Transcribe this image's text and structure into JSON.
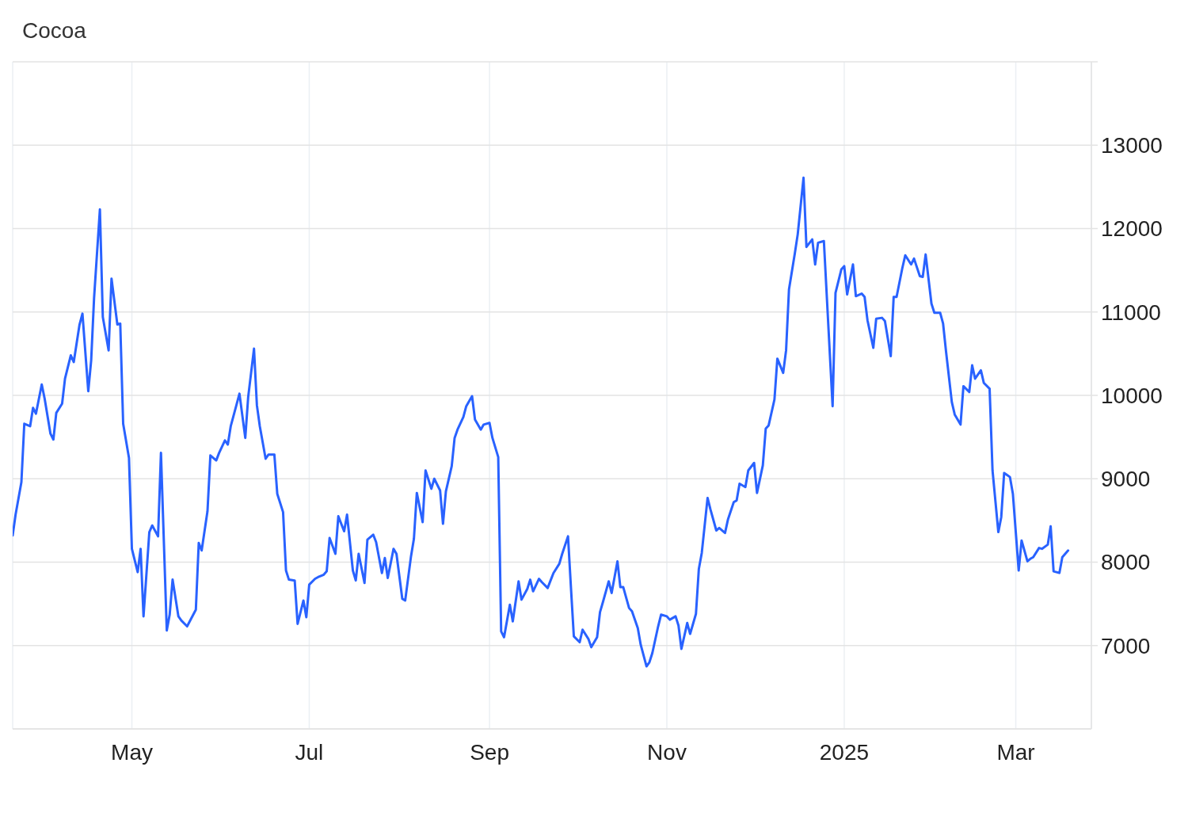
{
  "chart_data": {
    "type": "line",
    "title": "Cocoa",
    "color": "#2962ff",
    "grid": true,
    "xlim": [
      "2024-03-21",
      "2025-03-27"
    ],
    "xticks": [
      {
        "value": "2024-05-01",
        "label": "May"
      },
      {
        "value": "2024-07-01",
        "label": "Jul"
      },
      {
        "value": "2024-09-01",
        "label": "Sep"
      },
      {
        "value": "2024-11-01",
        "label": "Nov"
      },
      {
        "value": "2025-01-01",
        "label": "2025"
      },
      {
        "value": "2025-03-01",
        "label": "Mar"
      }
    ],
    "ylim": [
      6000,
      14000
    ],
    "yticks": [
      7000,
      8000,
      9000,
      10000,
      11000,
      12000,
      13000,
      {
        "value": 14000,
        "label": null
      }
    ],
    "x": [
      "2024-03-21",
      "2024-03-22",
      "2024-03-24",
      "2024-03-25",
      "2024-03-27",
      "2024-03-28",
      "2024-03-29",
      "2024-03-31",
      "2024-04-01",
      "2024-04-03",
      "2024-04-04",
      "2024-04-05",
      "2024-04-07",
      "2024-04-08",
      "2024-04-10",
      "2024-04-11",
      "2024-04-13",
      "2024-04-14",
      "2024-04-16",
      "2024-04-17",
      "2024-04-18",
      "2024-04-20",
      "2024-04-21",
      "2024-04-23",
      "2024-04-24",
      "2024-04-26",
      "2024-04-27",
      "2024-04-28",
      "2024-04-30",
      "2024-05-01",
      "2024-05-03",
      "2024-05-04",
      "2024-05-05",
      "2024-05-07",
      "2024-05-08",
      "2024-05-10",
      "2024-05-11",
      "2024-05-13",
      "2024-05-14",
      "2024-05-15",
      "2024-05-17",
      "2024-05-18",
      "2024-05-20",
      "2024-05-23",
      "2024-05-24",
      "2024-05-25",
      "2024-05-27",
      "2024-05-28",
      "2024-05-30",
      "2024-05-31",
      "2024-06-02",
      "2024-06-03",
      "2024-06-04",
      "2024-06-06",
      "2024-06-07",
      "2024-06-09",
      "2024-06-10",
      "2024-06-12",
      "2024-06-13",
      "2024-06-14",
      "2024-06-16",
      "2024-06-17",
      "2024-06-19",
      "2024-06-20",
      "2024-06-22",
      "2024-06-23",
      "2024-06-24",
      "2024-06-26",
      "2024-06-27",
      "2024-06-29",
      "2024-06-30",
      "2024-07-01",
      "2024-07-03",
      "2024-07-04",
      "2024-07-06",
      "2024-07-07",
      "2024-07-08",
      "2024-07-10",
      "2024-07-11",
      "2024-07-13",
      "2024-07-14",
      "2024-07-16",
      "2024-07-17",
      "2024-07-18",
      "2024-07-20",
      "2024-07-21",
      "2024-07-23",
      "2024-07-24",
      "2024-07-26",
      "2024-07-27",
      "2024-07-28",
      "2024-07-30",
      "2024-07-31",
      "2024-08-02",
      "2024-08-03",
      "2024-08-05",
      "2024-08-06",
      "2024-08-07",
      "2024-08-09",
      "2024-08-10",
      "2024-08-12",
      "2024-08-13",
      "2024-08-15",
      "2024-08-16",
      "2024-08-17",
      "2024-08-19",
      "2024-08-20",
      "2024-08-21",
      "2024-08-23",
      "2024-08-24",
      "2024-08-26",
      "2024-08-27",
      "2024-08-29",
      "2024-08-30",
      "2024-09-01",
      "2024-09-02",
      "2024-09-04",
      "2024-09-05",
      "2024-09-06",
      "2024-09-08",
      "2024-09-09",
      "2024-09-11",
      "2024-09-12",
      "2024-09-14",
      "2024-09-15",
      "2024-09-16",
      "2024-09-18",
      "2024-09-19",
      "2024-09-21",
      "2024-09-22",
      "2024-09-23",
      "2024-09-25",
      "2024-09-26",
      "2024-09-28",
      "2024-09-29",
      "2024-09-30",
      "2024-10-02",
      "2024-10-03",
      "2024-10-05",
      "2024-10-06",
      "2024-10-08",
      "2024-10-09",
      "2024-10-10",
      "2024-10-12",
      "2024-10-13",
      "2024-10-15",
      "2024-10-16",
      "2024-10-17",
      "2024-10-19",
      "2024-10-20",
      "2024-10-22",
      "2024-10-23",
      "2024-10-25",
      "2024-10-26",
      "2024-10-27",
      "2024-10-29",
      "2024-10-30",
      "2024-11-01",
      "2024-11-02",
      "2024-11-04",
      "2024-11-05",
      "2024-11-06",
      "2024-11-08",
      "2024-11-09",
      "2024-11-11",
      "2024-11-12",
      "2024-11-13",
      "2024-11-15",
      "2024-11-16",
      "2024-11-18",
      "2024-11-19",
      "2024-11-21",
      "2024-11-22",
      "2024-11-24",
      "2024-11-25",
      "2024-11-26",
      "2024-11-28",
      "2024-11-29",
      "2024-12-01",
      "2024-12-02",
      "2024-12-04",
      "2024-12-05",
      "2024-12-06",
      "2024-12-08",
      "2024-12-09",
      "2024-12-11",
      "2024-12-12",
      "2024-12-13",
      "2024-12-15",
      "2024-12-16",
      "2024-12-18",
      "2024-12-19",
      "2024-12-21",
      "2024-12-22",
      "2024-12-23",
      "2024-12-25",
      "2024-12-28",
      "2024-12-29",
      "2024-12-31",
      "2025-01-01",
      "2025-01-02",
      "2025-01-04",
      "2025-01-05",
      "2025-01-07",
      "2025-01-08",
      "2025-01-09",
      "2025-01-11",
      "2025-01-12",
      "2025-01-14",
      "2025-01-15",
      "2025-01-17",
      "2025-01-18",
      "2025-01-19",
      "2025-01-21",
      "2025-01-22",
      "2025-01-24",
      "2025-01-25",
      "2025-01-27",
      "2025-01-28",
      "2025-01-29",
      "2025-01-31",
      "2025-02-01",
      "2025-02-03",
      "2025-02-04",
      "2025-02-05",
      "2025-02-07",
      "2025-02-08",
      "2025-02-10",
      "2025-02-11",
      "2025-02-13",
      "2025-02-14",
      "2025-02-15",
      "2025-02-17",
      "2025-02-18",
      "2025-02-20",
      "2025-02-21",
      "2025-02-23",
      "2025-02-24",
      "2025-02-25",
      "2025-02-27",
      "2025-02-28",
      "2025-03-02",
      "2025-03-03",
      "2025-03-05",
      "2025-03-06",
      "2025-03-07",
      "2025-03-09",
      "2025-03-10",
      "2025-03-12",
      "2025-03-13",
      "2025-03-14",
      "2025-03-16",
      "2025-03-17",
      "2025-03-19"
    ],
    "values": [
      8320,
      8570,
      8960,
      9660,
      9630,
      9850,
      9780,
      10130,
      9960,
      9540,
      9470,
      9790,
      9900,
      10200,
      10480,
      10400,
      10850,
      10980,
      10050,
      10420,
      11170,
      12230,
      10940,
      10540,
      11400,
      10850,
      10860,
      9660,
      9250,
      8160,
      7880,
      8160,
      7350,
      8360,
      8440,
      8310,
      9310,
      7180,
      7370,
      7790,
      7350,
      7300,
      7230,
      7430,
      8230,
      8140,
      8610,
      9280,
      9220,
      9310,
      9460,
      9410,
      9630,
      9890,
      10020,
      9490,
      9980,
      10560,
      9880,
      9630,
      9240,
      9290,
      9290,
      8820,
      8600,
      7900,
      7790,
      7780,
      7260,
      7540,
      7340,
      7730,
      7800,
      7820,
      7850,
      7890,
      8290,
      8100,
      8550,
      8370,
      8570,
      7900,
      7780,
      8100,
      7750,
      8270,
      8330,
      8240,
      7870,
      8050,
      7810,
      8160,
      8100,
      7560,
      7540,
      8070,
      8280,
      8830,
      8480,
      9100,
      8880,
      9000,
      8860,
      8460,
      8850,
      9150,
      9490,
      9590,
      9740,
      9870,
      9990,
      9710,
      9590,
      9650,
      9670,
      9490,
      9260,
      7170,
      7100,
      7490,
      7290,
      7770,
      7550,
      7680,
      7790,
      7650,
      7800,
      7760,
      7690,
      7780,
      7870,
      7980,
      8100,
      8310,
      7700,
      7110,
      7040,
      7190,
      7080,
      6980,
      7100,
      7400,
      7520,
      7770,
      7630,
      8010,
      7700,
      7700,
      7450,
      7410,
      7210,
      7010,
      6750,
      6800,
      6910,
      7230,
      7370,
      7350,
      7310,
      7350,
      7240,
      6960,
      7270,
      7140,
      7380,
      7920,
      8110,
      8770,
      8630,
      8380,
      8410,
      8350,
      8510,
      8720,
      8740,
      8940,
      8900,
      9100,
      9190,
      8830,
      9160,
      9600,
      9640,
      9950,
      10440,
      10270,
      10540,
      11270,
      11700,
      11930,
      12610,
      11780,
      11870,
      11570,
      11830,
      11850,
      9870,
      11230,
      11510,
      11550,
      11210,
      11570,
      11190,
      11220,
      11180,
      10900,
      10570,
      10920,
      10930,
      10890,
      10470,
      11180,
      11180,
      11530,
      11680,
      11570,
      11640,
      11430,
      11420,
      11690,
      11100,
      10990,
      10990,
      10860,
      10530,
      9920,
      9770,
      9650,
      10110,
      10040,
      10360,
      10200,
      10300,
      10150,
      10080,
      9100,
      8360,
      8540,
      9070,
      9020,
      8820,
      7900,
      8260,
      8010,
      8040,
      8060,
      8170,
      8160,
      8210,
      8430,
      7890,
      7870,
      8060,
      8140
    ]
  }
}
